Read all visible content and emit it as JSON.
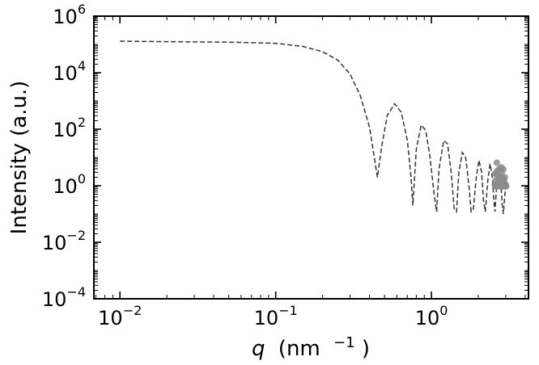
{
  "chart_data": {
    "type": "line",
    "title": "",
    "xlabel": {
      "symbol": "q",
      "unit": "(nm",
      "exponent": "−1",
      "close": ")"
    },
    "ylabel": "Intensity (a.u.)",
    "xscale": "log",
    "yscale": "log",
    "xlim": [
      0.0068,
      4.2
    ],
    "ylim": [
      0.0001,
      1000000
    ],
    "grid": false,
    "legend": "none",
    "x_ticks": [
      {
        "base": "10",
        "exp": "−2",
        "value": 0.01
      },
      {
        "base": "10",
        "exp": "−1",
        "value": 0.1
      },
      {
        "base": "10",
        "exp": "0",
        "value": 1
      }
    ],
    "y_ticks": [
      {
        "base": "10",
        "exp": "6",
        "value": 1000000
      },
      {
        "base": "10",
        "exp": "4",
        "value": 10000
      },
      {
        "base": "10",
        "exp": "2",
        "value": 100
      },
      {
        "base": "10",
        "exp": "0",
        "value": 1
      },
      {
        "base": "10",
        "exp": "−2",
        "value": 0.01
      },
      {
        "base": "10",
        "exp": "−4",
        "value": 0.0001
      }
    ],
    "series": [
      {
        "style": "dashed-line",
        "color": "#333333",
        "x": [
          0.01,
          0.02,
          0.05,
          0.1,
          0.15,
          0.2,
          0.25,
          0.3,
          0.35,
          0.4,
          0.43,
          0.45,
          0.48,
          0.52,
          0.58,
          0.64,
          0.7,
          0.74,
          0.76,
          0.8,
          0.86,
          0.92,
          0.98,
          1.04,
          1.08,
          1.12,
          1.2,
          1.27,
          1.34,
          1.4,
          1.45,
          1.5,
          1.58,
          1.66,
          1.74,
          1.8,
          1.86,
          1.94,
          2.02,
          2.1,
          2.16,
          2.22,
          2.3,
          2.38,
          2.46,
          2.52,
          2.56,
          2.62,
          2.7,
          2.78,
          2.85,
          2.9,
          2.96,
          3.02
        ],
        "y": [
          130000,
          125000,
          120000,
          110000,
          85000,
          55000,
          28000,
          9000,
          1500,
          120,
          10,
          2,
          25,
          300,
          800,
          400,
          40,
          2,
          0.2,
          20,
          140,
          90,
          10,
          0.5,
          0.12,
          4,
          40,
          30,
          3,
          0.15,
          0.12,
          3,
          15,
          10,
          1,
          0.12,
          0.15,
          2,
          8,
          3,
          0.3,
          0.12,
          1.5,
          6,
          2,
          0.3,
          0.12,
          1,
          4,
          2,
          0.2,
          0.1,
          0.5,
          1
        ]
      },
      {
        "style": "markers",
        "color": "#8c8c8c",
        "x": [
          2.55,
          2.58,
          2.6,
          2.62,
          2.63,
          2.65,
          2.66,
          2.68,
          2.7,
          2.71,
          2.73,
          2.75,
          2.76,
          2.78,
          2.8,
          2.82,
          2.84,
          2.86,
          2.88,
          2.9,
          2.92,
          2.94,
          2.96,
          2.98,
          3.0,
          2.6,
          2.64,
          2.7,
          2.76,
          2.8,
          2.85,
          2.9,
          2.95,
          3.0,
          3.02,
          2.57,
          2.67,
          2.74,
          2.83,
          2.93
        ],
        "y": [
          1.05,
          1.5,
          2.5,
          1.1,
          6.5,
          1.0,
          3.5,
          1.2,
          1.6,
          1.05,
          4.0,
          1.0,
          2.2,
          1.05,
          1.4,
          4.5,
          1.05,
          1.8,
          1.0,
          3.8,
          1.1,
          1.2,
          2.0,
          1.05,
          1.1,
          0.95,
          0.95,
          0.95,
          0.95,
          0.95,
          0.95,
          0.95,
          0.95,
          0.95,
          0.95,
          2.8,
          2.0,
          1.3,
          3.0,
          1.6
        ]
      }
    ]
  }
}
